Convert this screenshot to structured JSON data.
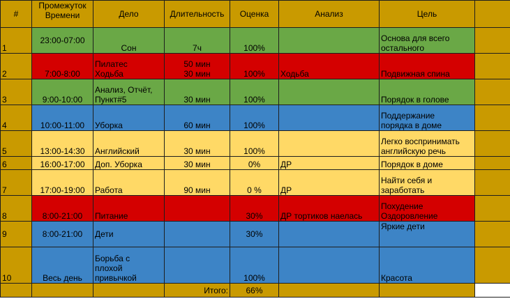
{
  "colors": {
    "header": "#c99a00",
    "green": "#6aa846",
    "red": "#d40000",
    "blue": "#3d84c6",
    "yellow": "#ffd966"
  },
  "headers": {
    "num": "#",
    "time": "Промежуток\nВремени",
    "task": "Дело",
    "duration": "Длительность",
    "score": "Оценка",
    "analysis": "Анализ",
    "goal": "Цель"
  },
  "rows": [
    {
      "num": "1",
      "time": "23:00-07:00",
      "task": "Сон",
      "duration": "7ч",
      "score": "100%",
      "analysis": "",
      "goal": "Основа для всего\nостального"
    },
    {
      "num": "2",
      "time": "7:00-8:00",
      "task": "Пилатес\nХодьба",
      "duration": "50 мин\n30 мин",
      "score": "100%",
      "analysis": "Ходьба",
      "goal": "Подвижная спина"
    },
    {
      "num": "3",
      "time": "9:00-10:00",
      "task": "Анализ, Отчёт,\nПункт#5",
      "duration": "30 мин",
      "score": "100%",
      "analysis": "",
      "goal": "Порядок в голове"
    },
    {
      "num": "4",
      "time": "10:00-11:00",
      "task": "Уборка",
      "duration": "60 мин",
      "score": "100%",
      "analysis": "",
      "goal": "Поддержание\nпорядка в доме"
    },
    {
      "num": "5",
      "time": "13:00-14:30",
      "task": "Английский",
      "duration": "30 мин",
      "score": "100%",
      "analysis": "",
      "goal": "Легко воспринимать\nанглийскую речь"
    },
    {
      "num": "6",
      "time": "16:00-17:00",
      "task": "Доп. Уборка",
      "duration": "30 мин",
      "score": "0%",
      "analysis": "ДР",
      "goal": "Порядок в доме"
    },
    {
      "num": "7",
      "time": "17:00-19:00",
      "task": "Работа",
      "duration": "90 мин",
      "score": "0 %",
      "analysis": "ДР",
      "goal": "Найти себя и\nзаработать"
    },
    {
      "num": "8",
      "time": "8:00-21:00",
      "task": "Питание",
      "duration": "",
      "score": "30%",
      "analysis": "ДР тортиков наелась",
      "goal": "Похудение\nОздоровление"
    },
    {
      "num": "9",
      "time": "8:00-21:00",
      "task": "Дети",
      "duration": "",
      "score": "30%",
      "analysis": "",
      "goal": "Яркие дети"
    },
    {
      "num": "10",
      "time": "Весь день",
      "task": "Борьба с\nплохой\nпривычкой",
      "duration": "",
      "score": "100%",
      "analysis": "",
      "goal": "Красота"
    }
  ],
  "footer": {
    "label": "Итого:",
    "score": "66%"
  }
}
